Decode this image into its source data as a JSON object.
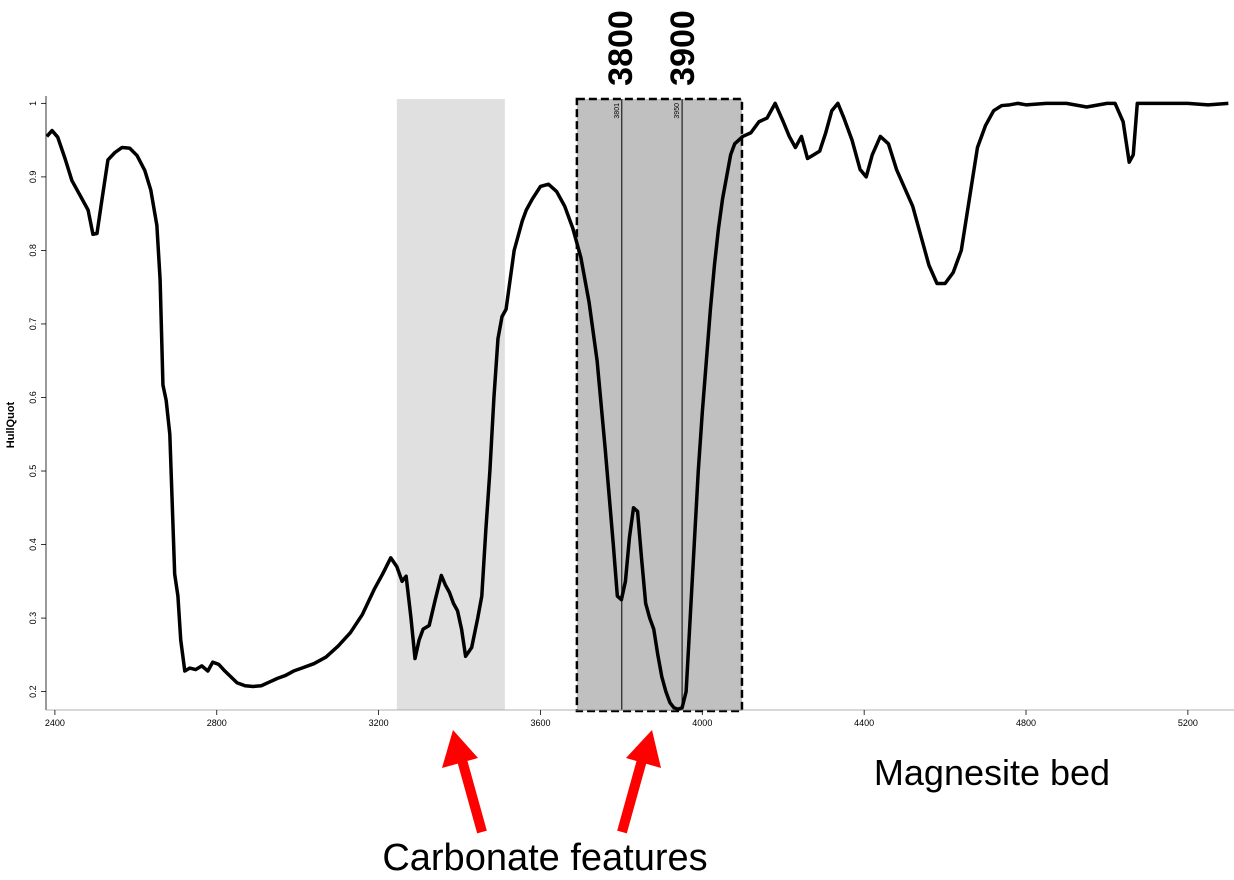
{
  "chart_data": {
    "type": "line",
    "ylabel": "HullQuot",
    "x": [
      2380,
      2393,
      2407,
      2425,
      2442,
      2462,
      2482,
      2494,
      2504,
      2516,
      2531,
      2548,
      2566,
      2585,
      2603,
      2622,
      2637,
      2652,
      2660,
      2667,
      2675,
      2684,
      2696,
      2704,
      2711,
      2721,
      2733,
      2748,
      2763,
      2778,
      2790,
      2805,
      2820,
      2835,
      2850,
      2870,
      2890,
      2910,
      2930,
      2950,
      2970,
      2990,
      3010,
      3040,
      3070,
      3100,
      3130,
      3160,
      3190,
      3210,
      3230,
      3245,
      3258,
      3268,
      3280,
      3290,
      3300,
      3310,
      3325,
      3340,
      3355,
      3365,
      3375,
      3385,
      3395,
      3405,
      3415,
      3430,
      3445,
      3455,
      3465,
      3475,
      3485,
      3495,
      3505,
      3515,
      3525,
      3535,
      3545,
      3555,
      3565,
      3580,
      3600,
      3620,
      3640,
      3660,
      3680,
      3700,
      3720,
      3740,
      3760,
      3780,
      3790,
      3800,
      3810,
      3820,
      3830,
      3840,
      3850,
      3860,
      3870,
      3880,
      3890,
      3900,
      3910,
      3920,
      3930,
      3940,
      3950,
      3960,
      3970,
      3980,
      3990,
      4000,
      4010,
      4020,
      4030,
      4040,
      4050,
      4060,
      4070,
      4080,
      4100,
      4120,
      4140,
      4160,
      4180,
      4200,
      4215,
      4230,
      4245,
      4260,
      4275,
      4290,
      4305,
      4320,
      4335,
      4350,
      4370,
      4390,
      4405,
      4420,
      4440,
      4460,
      4480,
      4500,
      4520,
      4540,
      4560,
      4580,
      4600,
      4620,
      4640,
      4660,
      4680,
      4700,
      4720,
      4740,
      4760,
      4780,
      4800,
      4850,
      4900,
      4950,
      5000,
      5020,
      5040,
      5055,
      5065,
      5075,
      5100,
      5150,
      5200,
      5250,
      5300
    ],
    "series": [
      {
        "color": "#000000",
        "values": [
          0.955,
          0.963,
          0.954,
          0.925,
          0.895,
          0.875,
          0.855,
          0.822,
          0.823,
          0.868,
          0.923,
          0.933,
          0.94,
          0.939,
          0.929,
          0.909,
          0.882,
          0.834,
          0.76,
          0.617,
          0.596,
          0.55,
          0.36,
          0.33,
          0.27,
          0.228,
          0.232,
          0.23,
          0.235,
          0.228,
          0.24,
          0.237,
          0.228,
          0.22,
          0.212,
          0.208,
          0.207,
          0.208,
          0.213,
          0.218,
          0.222,
          0.228,
          0.232,
          0.238,
          0.247,
          0.262,
          0.28,
          0.305,
          0.34,
          0.36,
          0.382,
          0.37,
          0.35,
          0.357,
          0.3,
          0.245,
          0.27,
          0.285,
          0.29,
          0.325,
          0.358,
          0.345,
          0.335,
          0.32,
          0.31,
          0.285,
          0.248,
          0.26,
          0.3,
          0.33,
          0.42,
          0.5,
          0.6,
          0.68,
          0.71,
          0.72,
          0.76,
          0.8,
          0.82,
          0.84,
          0.855,
          0.87,
          0.887,
          0.89,
          0.88,
          0.86,
          0.83,
          0.79,
          0.73,
          0.65,
          0.53,
          0.4,
          0.33,
          0.325,
          0.35,
          0.41,
          0.45,
          0.445,
          0.38,
          0.32,
          0.3,
          0.285,
          0.25,
          0.22,
          0.2,
          0.185,
          0.178,
          0.176,
          0.178,
          0.2,
          0.3,
          0.4,
          0.5,
          0.58,
          0.65,
          0.72,
          0.78,
          0.83,
          0.87,
          0.9,
          0.93,
          0.945,
          0.955,
          0.96,
          0.975,
          0.98,
          1.0,
          0.975,
          0.955,
          0.94,
          0.955,
          0.925,
          0.93,
          0.935,
          0.96,
          0.99,
          1.0,
          0.98,
          0.95,
          0.91,
          0.9,
          0.93,
          0.955,
          0.945,
          0.91,
          0.885,
          0.86,
          0.82,
          0.78,
          0.755,
          0.755,
          0.77,
          0.8,
          0.87,
          0.94,
          0.97,
          0.99,
          0.997,
          0.998,
          1.0,
          0.998,
          1.0,
          1.0,
          0.995,
          1.0,
          1.0,
          0.975,
          0.92,
          0.93,
          1.0,
          1.0,
          1.0,
          1.0,
          0.998,
          1.0
        ]
      }
    ],
    "xlim": [
      2378,
      5314
    ],
    "ylim": [
      0.175,
      1.01
    ],
    "xticks": [
      2400,
      2800,
      3200,
      3600,
      4000,
      4400,
      4800,
      5200
    ],
    "yticks": [
      0.2,
      0.3,
      0.4,
      0.5,
      0.6,
      0.7,
      0.8,
      0.9,
      1
    ],
    "regions": [
      {
        "x": [
          3245,
          3512
        ],
        "color": "#e0e0e0"
      },
      {
        "x": [
          3690,
          4098
        ],
        "color": "#c0c0c0",
        "dashed": true
      }
    ],
    "markers": [
      3801,
      3950
    ],
    "annotations": [
      "3800",
      "3900",
      "Magnesite bed",
      "Carbonate features"
    ]
  }
}
